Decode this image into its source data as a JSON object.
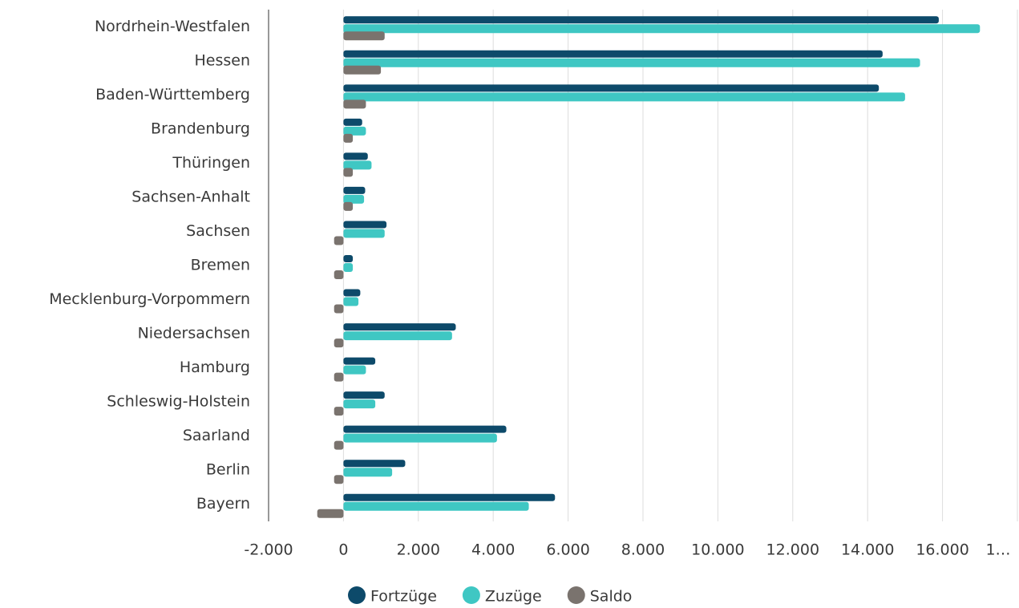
{
  "chart_data": {
    "type": "barh",
    "categories": [
      "Nordrhein-Westfalen",
      "Hessen",
      "Baden-Württemberg",
      "Brandenburg",
      "Thüringen",
      "Sachsen-Anhalt",
      "Sachsen",
      "Bremen",
      "Mecklenburg-Vorpommern",
      "Niedersachsen",
      "Hamburg",
      "Schleswig-Holstein",
      "Saarland",
      "Berlin",
      "Bayern"
    ],
    "series": [
      {
        "name": "Fortzüge",
        "color": "#0d4a6a",
        "values": [
          15900,
          14400,
          14300,
          500,
          650,
          580,
          1150,
          250,
          450,
          3000,
          850,
          1100,
          4350,
          1650,
          5650
        ]
      },
      {
        "name": "Zuzüge",
        "color": "#3fc7c3",
        "values": [
          17000,
          15400,
          15000,
          600,
          750,
          550,
          1100,
          250,
          400,
          2900,
          600,
          850,
          4100,
          1300,
          4950
        ]
      },
      {
        "name": "Saldo",
        "color": "#7a736e",
        "values": [
          1100,
          1000,
          600,
          250,
          250,
          250,
          -250,
          -250,
          -250,
          -250,
          -250,
          -250,
          -250,
          -250,
          -700
        ]
      }
    ],
    "xlim": [
      -2000,
      18000
    ],
    "xticks": [
      {
        "value": -2000,
        "label": "-2.000"
      },
      0,
      {
        "value": 2000,
        "label": "2.000"
      },
      {
        "value": 4000,
        "label": "4.000"
      },
      {
        "value": 6000,
        "label": "6.000"
      },
      {
        "value": 8000,
        "label": "8.000"
      },
      {
        "value": 10000,
        "label": "10.000"
      },
      {
        "value": 12000,
        "label": "12.000"
      },
      {
        "value": 14000,
        "label": "14.000"
      },
      {
        "value": 16000,
        "label": "16.000"
      },
      {
        "value": 18000,
        "label": "1…"
      }
    ],
    "grid": true,
    "legend": "bottom"
  }
}
